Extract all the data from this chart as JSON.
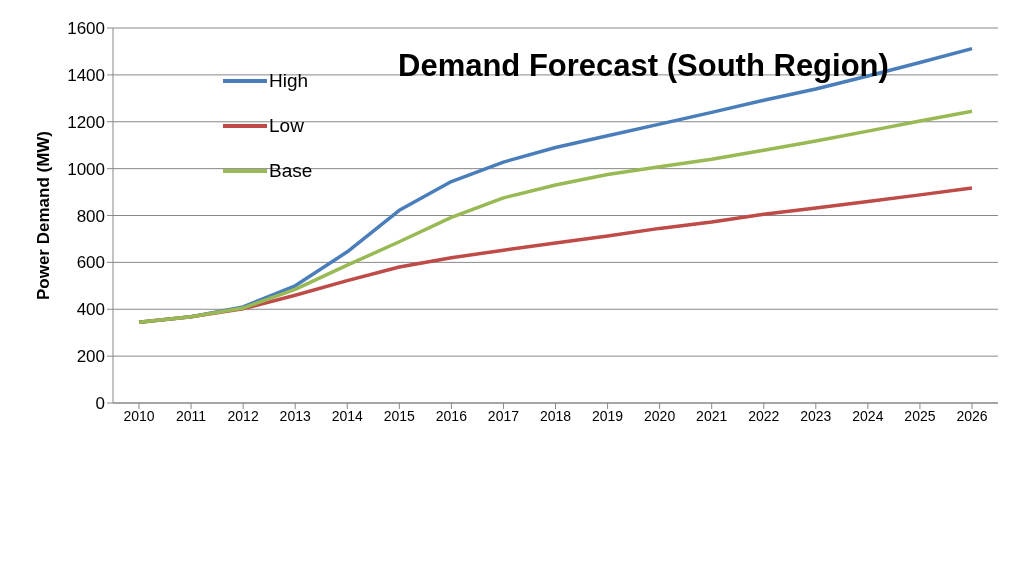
{
  "chart_data": {
    "type": "line",
    "title": "Demand Forecast (South Region)",
    "ylabel": "Power Demand (MW)",
    "categories": [
      "2010",
      "2011",
      "2012",
      "2013",
      "2014",
      "2015",
      "2016",
      "2017",
      "2018",
      "2019",
      "2020",
      "2021",
      "2022",
      "2023",
      "2024",
      "2025",
      "2026"
    ],
    "series": [
      {
        "name": "High",
        "color": "#4a7ebb",
        "values": [
          345,
          368,
          410,
          500,
          645,
          822,
          945,
          1028,
          1090,
          1140,
          1190,
          1240,
          1292,
          1340,
          1395,
          1453,
          1512
        ]
      },
      {
        "name": "Low",
        "color": "#be4b48",
        "values": [
          345,
          368,
          402,
          460,
          522,
          580,
          620,
          652,
          683,
          713,
          745,
          772,
          805,
          832,
          860,
          888,
          917
        ]
      },
      {
        "name": "Base",
        "color": "#98b954",
        "values": [
          345,
          368,
          405,
          485,
          588,
          688,
          792,
          875,
          930,
          975,
          1008,
          1040,
          1078,
          1118,
          1160,
          1203,
          1245
        ]
      }
    ],
    "ylim": [
      0,
      1600
    ],
    "yticks": [
      0,
      200,
      400,
      600,
      800,
      1000,
      1200,
      1400,
      1600
    ],
    "grid": "y",
    "legend": "top left",
    "marker": "none",
    "line_style": "solid"
  }
}
